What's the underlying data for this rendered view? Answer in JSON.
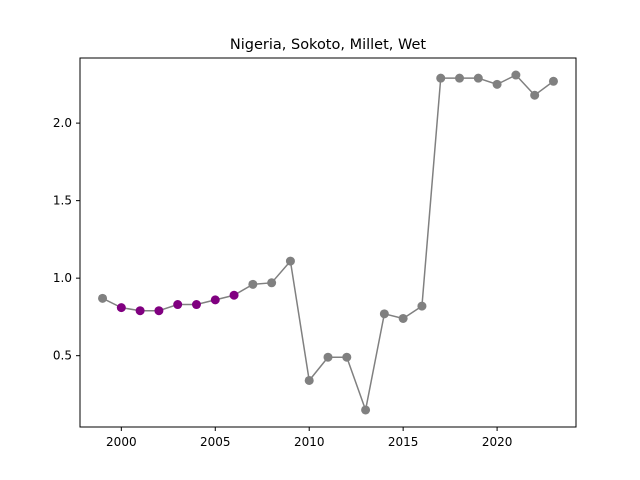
{
  "chart_data": {
    "type": "line",
    "title": "Nigeria, Sokoto, Millet, Wet",
    "xlabel": "",
    "ylabel": "",
    "xlim": [
      1997.8,
      2024.2
    ],
    "ylim": [
      0.04,
      2.42
    ],
    "x_ticks": [
      2000,
      2005,
      2010,
      2015,
      2020
    ],
    "y_ticks": [
      0.5,
      1.0,
      1.5,
      2.0
    ],
    "x_tick_labels": [
      "2000",
      "2005",
      "2010",
      "2015",
      "2020"
    ],
    "y_tick_labels": [
      "0.5",
      "1.0",
      "1.5",
      "2.0"
    ],
    "grid": false,
    "line_color": "#808080",
    "marker_color_default": "#808080",
    "marker_color_highlight": "#800080",
    "points": [
      {
        "x": 1999,
        "y": 0.87,
        "highlight": false
      },
      {
        "x": 2000,
        "y": 0.81,
        "highlight": true
      },
      {
        "x": 2001,
        "y": 0.79,
        "highlight": true
      },
      {
        "x": 2002,
        "y": 0.79,
        "highlight": true
      },
      {
        "x": 2003,
        "y": 0.83,
        "highlight": true
      },
      {
        "x": 2004,
        "y": 0.83,
        "highlight": true
      },
      {
        "x": 2005,
        "y": 0.86,
        "highlight": true
      },
      {
        "x": 2006,
        "y": 0.89,
        "highlight": true
      },
      {
        "x": 2007,
        "y": 0.96,
        "highlight": false
      },
      {
        "x": 2008,
        "y": 0.97,
        "highlight": false
      },
      {
        "x": 2009,
        "y": 1.11,
        "highlight": false
      },
      {
        "x": 2010,
        "y": 0.34,
        "highlight": false
      },
      {
        "x": 2011,
        "y": 0.49,
        "highlight": false
      },
      {
        "x": 2012,
        "y": 0.49,
        "highlight": false
      },
      {
        "x": 2013,
        "y": 0.15,
        "highlight": false
      },
      {
        "x": 2014,
        "y": 0.77,
        "highlight": false
      },
      {
        "x": 2015,
        "y": 0.74,
        "highlight": false
      },
      {
        "x": 2016,
        "y": 0.82,
        "highlight": false
      },
      {
        "x": 2017,
        "y": 2.29,
        "highlight": false
      },
      {
        "x": 2018,
        "y": 2.29,
        "highlight": false
      },
      {
        "x": 2019,
        "y": 2.29,
        "highlight": false
      },
      {
        "x": 2020,
        "y": 2.25,
        "highlight": false
      },
      {
        "x": 2021,
        "y": 2.31,
        "highlight": false
      },
      {
        "x": 2022,
        "y": 2.18,
        "highlight": false
      },
      {
        "x": 2023,
        "y": 2.27,
        "highlight": false
      }
    ]
  }
}
